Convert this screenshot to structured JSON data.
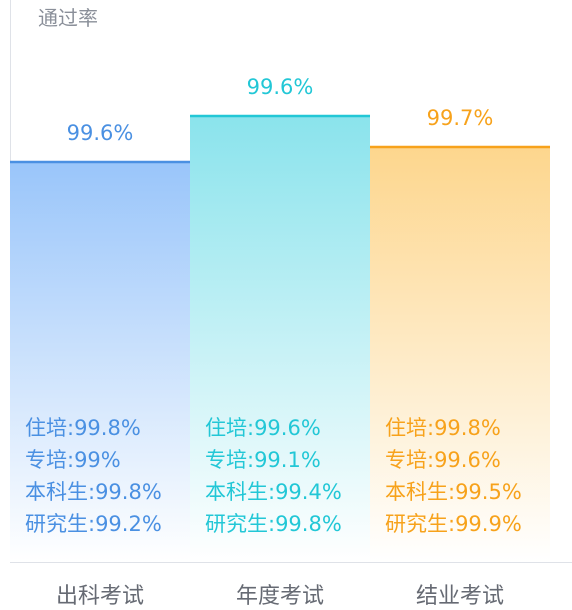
{
  "chart_data": {
    "type": "bar",
    "ylabel": "通过率",
    "categories": [
      "出科考试",
      "年度考试",
      "结业考试"
    ],
    "values": [
      99.6,
      99.6,
      99.7
    ],
    "value_labels": [
      "99.6%",
      "99.6%",
      "99.7%"
    ],
    "colors": [
      "#4a90e2",
      "#22c7d6",
      "#f7a21b"
    ],
    "details": [
      [
        "住培:99.8%",
        "专培:99%",
        "本科生:99.8%",
        "研究生:99.2%"
      ],
      [
        "住培:99.6%",
        "专培:99.1%",
        "本科生:99.4%",
        "研究生:99.8%"
      ],
      [
        "住培:99.8%",
        "专培:99.6%",
        "本科生:99.5%",
        "研究生:99.9%"
      ]
    ]
  }
}
